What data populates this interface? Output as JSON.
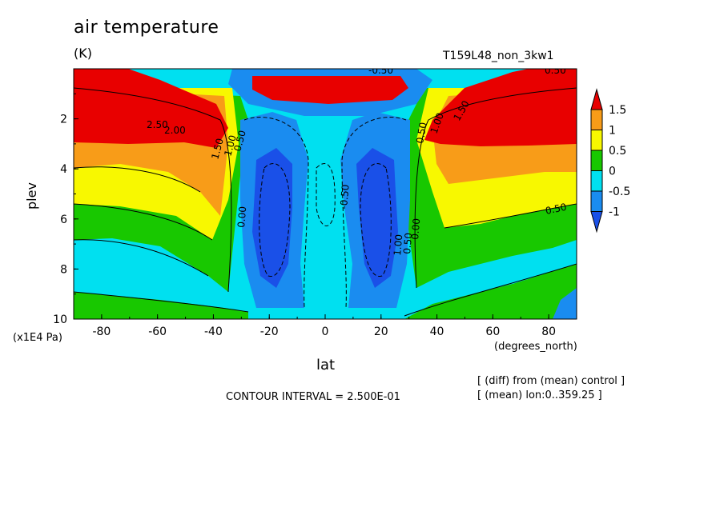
{
  "header": {
    "title": "air temperature",
    "units": "(K)",
    "run_id": "T159L48_non_3kw1"
  },
  "axes": {
    "ylabel": "plev",
    "yunit": "(x1E4 Pa)",
    "xlabel": "lat",
    "xunit": "(degrees_north)"
  },
  "footer": {
    "contour_interval": "CONTOUR INTERVAL = 2.500E-01",
    "note1": "[ (diff) from (mean) control ]",
    "note2": "[ (mean) lon:0..359.25 ]"
  },
  "chart_data": {
    "type": "heatmap",
    "title": "air temperature",
    "units": "(K)",
    "xlabel": "lat",
    "ylabel": "plev",
    "xlim": [
      -90,
      90
    ],
    "ylim": [
      10,
      0
    ],
    "x_ticks": [
      "-80",
      "-60",
      "-40",
      "-20",
      "0",
      "20",
      "40",
      "60",
      "80"
    ],
    "y_ticks": [
      "2",
      "4",
      "6",
      "8",
      "10"
    ],
    "contour_interval": 0.25,
    "colorbar": {
      "levels": [
        "1.5",
        "1",
        "0.5",
        "0",
        "-0.5",
        "-1"
      ],
      "colors": [
        "#e80000",
        "#f89c18",
        "#f8f800",
        "#18c800",
        "#00e0f0",
        "#1a8cf0",
        "#1a50e8"
      ]
    },
    "contour_labels": [
      "2.00",
      "2.50",
      "1.50",
      "1.00",
      "0.50",
      "0.00",
      "-0.50",
      "1.00",
      "0.50",
      "0.00",
      "0.50",
      "1.00",
      "1.50",
      "0.50",
      "-0.50",
      "0.50"
    ],
    "field_samples": [
      {
        "lat": -80,
        "plev": 1.5,
        "value": 2.5
      },
      {
        "lat": -60,
        "plev": 4,
        "value": 1.2
      },
      {
        "lat": -60,
        "plev": 6,
        "value": 0.6
      },
      {
        "lat": -60,
        "plev": 8,
        "value": 0.1
      },
      {
        "lat": -40,
        "plev": 6,
        "value": 0.8
      },
      {
        "lat": -20,
        "plev": 7,
        "value": -1.1
      },
      {
        "lat": 0,
        "plev": 4,
        "value": -0.5
      },
      {
        "lat": 0,
        "plev": 8,
        "value": -0.7
      },
      {
        "lat": 20,
        "plev": 7,
        "value": -1.1
      },
      {
        "lat": 40,
        "plev": 6,
        "value": 0.8
      },
      {
        "lat": 60,
        "plev": 4,
        "value": 1.0
      },
      {
        "lat": 80,
        "plev": 1.5,
        "value": 2.0
      },
      {
        "lat": 80,
        "plev": 9,
        "value": -0.5
      }
    ]
  }
}
